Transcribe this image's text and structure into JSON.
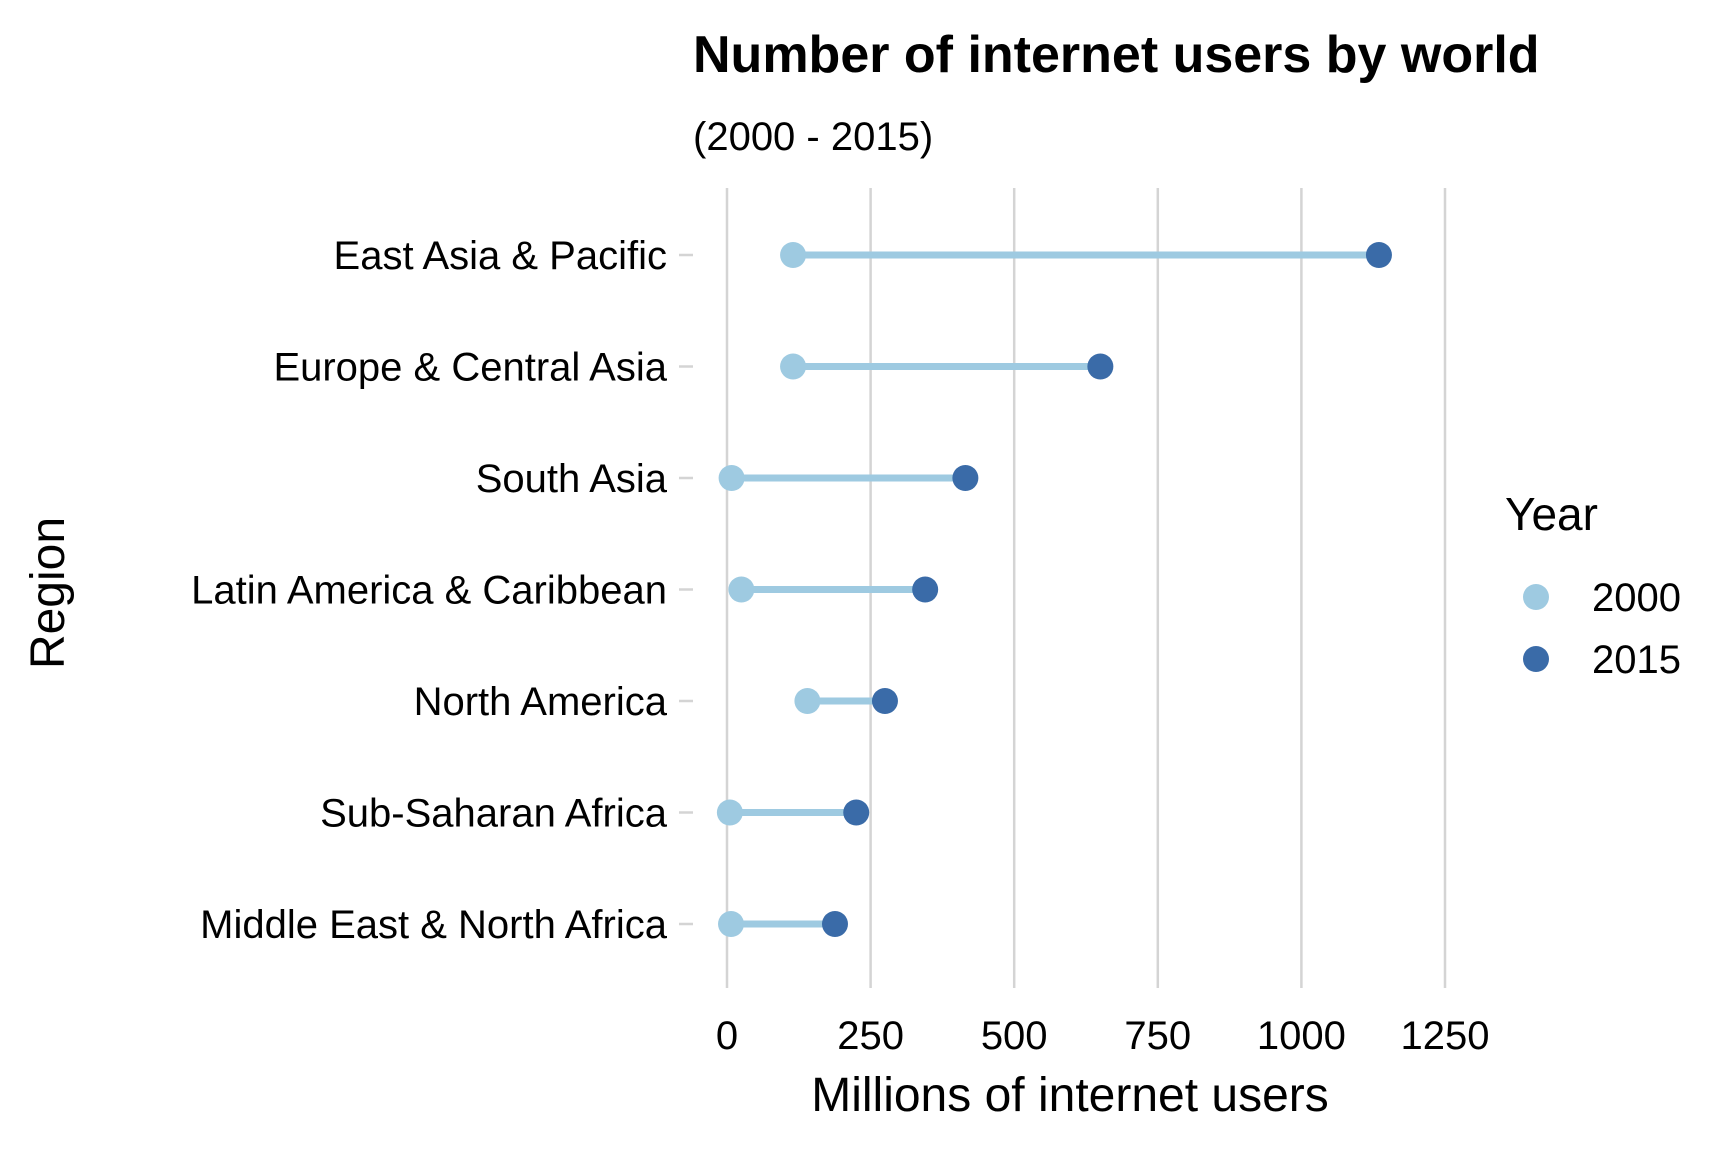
{
  "chart_data": {
    "type": "dumbbell",
    "title": "Number of internet users by world",
    "subtitle": "(2000 - 2015)",
    "xlabel": "Millions of internet users",
    "ylabel": "Region",
    "xlim": [
      0,
      1250
    ],
    "xticks": [
      0,
      250,
      500,
      750,
      1000,
      1250
    ],
    "grid": "vertical major",
    "legend": {
      "title": "Year",
      "position": "right"
    },
    "categories": [
      "East Asia & Pacific",
      "Europe & Central Asia",
      "South Asia",
      "Latin America & Caribbean",
      "North America",
      "Sub-Saharan Africa",
      "Middle East & North Africa"
    ],
    "series": [
      {
        "name": "2000",
        "color": "#9ecae1",
        "values": [
          115,
          115,
          8,
          25,
          140,
          5,
          7
        ]
      },
      {
        "name": "2015",
        "color": "#3a6ba8",
        "values": [
          1135,
          650,
          415,
          345,
          275,
          225,
          188
        ]
      }
    ],
    "segment_color": "#9ecae1",
    "grid_color": "#d4d4d4"
  }
}
